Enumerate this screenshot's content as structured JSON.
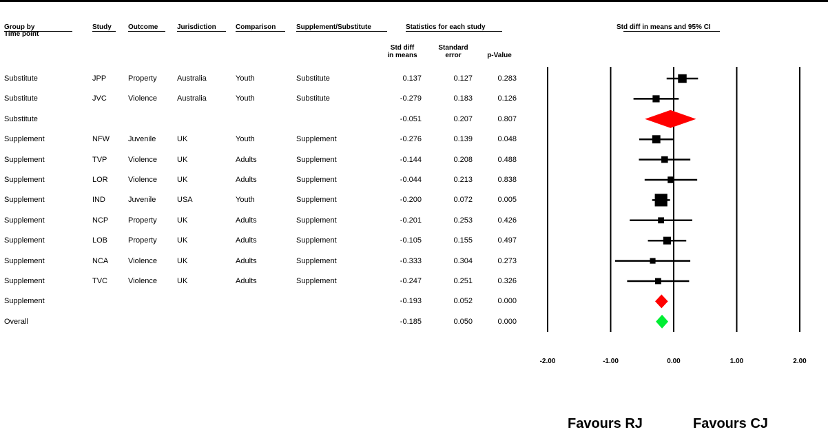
{
  "columns": {
    "group": "Group by",
    "group_sub": "Time point",
    "study": "Study",
    "outcome": "Outcome",
    "jurisdiction": "Jurisdiction",
    "comparison": "Comparison",
    "supplement": "Supplement/Substitute",
    "stats_title": "Statistics for each study",
    "std_diff": "Std diff",
    "std_diff_2": "in means",
    "std_err": "Standard",
    "std_err_2": "error",
    "p_value": "p-Value",
    "plot_title": "Std diff in means and 95% CI"
  },
  "rows": [
    {
      "group": "Substitute",
      "study": "JPP",
      "outcome": "Property",
      "jurisdiction": "Australia",
      "comparison": "Youth",
      "supplement": "Substitute",
      "std_diff": "0.137",
      "se": "0.127",
      "p": "0.283"
    },
    {
      "group": "Substitute",
      "study": "JVC",
      "outcome": "Violence",
      "jurisdiction": "Australia",
      "comparison": "Youth",
      "supplement": "Substitute",
      "std_diff": "-0.279",
      "se": "0.183",
      "p": "0.126"
    },
    {
      "group": "Substitute",
      "study": "",
      "outcome": "",
      "jurisdiction": "",
      "comparison": "",
      "supplement": "",
      "std_diff": "-0.051",
      "se": "0.207",
      "p": "0.807"
    },
    {
      "group": "Supplement",
      "study": "NFW",
      "outcome": "Juvenile",
      "jurisdiction": "UK",
      "comparison": "Youth",
      "supplement": "Supplement",
      "std_diff": "-0.276",
      "se": "0.139",
      "p": "0.048"
    },
    {
      "group": "Supplement",
      "study": "TVP",
      "outcome": "Violence",
      "jurisdiction": "UK",
      "comparison": "Adults",
      "supplement": "Supplement",
      "std_diff": "-0.144",
      "se": "0.208",
      "p": "0.488"
    },
    {
      "group": "Supplement",
      "study": "LOR",
      "outcome": "Violence",
      "jurisdiction": "UK",
      "comparison": "Adults",
      "supplement": "Supplement",
      "std_diff": "-0.044",
      "se": "0.213",
      "p": "0.838"
    },
    {
      "group": "Supplement",
      "study": "IND",
      "outcome": "Juvenile",
      "jurisdiction": "USA",
      "comparison": "Youth",
      "supplement": "Supplement",
      "std_diff": "-0.200",
      "se": "0.072",
      "p": "0.005"
    },
    {
      "group": "Supplement",
      "study": "NCP",
      "outcome": "Property",
      "jurisdiction": "UK",
      "comparison": "Adults",
      "supplement": "Supplement",
      "std_diff": "-0.201",
      "se": "0.253",
      "p": "0.426"
    },
    {
      "group": "Supplement",
      "study": "LOB",
      "outcome": "Property",
      "jurisdiction": "UK",
      "comparison": "Adults",
      "supplement": "Supplement",
      "std_diff": "-0.105",
      "se": "0.155",
      "p": "0.497"
    },
    {
      "group": "Supplement",
      "study": "NCA",
      "outcome": "Violence",
      "jurisdiction": "UK",
      "comparison": "Adults",
      "supplement": "Supplement",
      "std_diff": "-0.333",
      "se": "0.304",
      "p": "0.273"
    },
    {
      "group": "Supplement",
      "study": "TVC",
      "outcome": "Violence",
      "jurisdiction": "UK",
      "comparison": "Adults",
      "supplement": "Supplement",
      "std_diff": "-0.247",
      "se": "0.251",
      "p": "0.326"
    },
    {
      "group": "Supplement",
      "study": "",
      "outcome": "",
      "jurisdiction": "",
      "comparison": "",
      "supplement": "",
      "std_diff": "-0.193",
      "se": "0.052",
      "p": "0.000"
    },
    {
      "group": "Overall",
      "study": "",
      "outcome": "",
      "jurisdiction": "",
      "comparison": "",
      "supplement": "",
      "std_diff": "-0.185",
      "se": "0.050",
      "p": "0.000"
    }
  ],
  "favours_left": "Favours RJ",
  "favours_right": "Favours CJ",
  "colors": {
    "subgroup": "#ff0000",
    "overall": "#00ee33",
    "study": "#000000"
  },
  "chart_data": {
    "type": "forest",
    "title": "Std diff in means and 95% CI",
    "xlim": [
      -2,
      2
    ],
    "ticks": [
      -2,
      -1,
      0,
      1,
      2
    ],
    "tick_labels": [
      "-2.00",
      "-1.00",
      "0.00",
      "1.00",
      "2.00"
    ],
    "grid": "vertical lines at each tick",
    "points": [
      {
        "label": "JPP",
        "kind": "study",
        "estimate": 0.137,
        "ci_low": -0.112,
        "ci_high": 0.386
      },
      {
        "label": "JVC",
        "kind": "study",
        "estimate": -0.279,
        "ci_low": -0.638,
        "ci_high": 0.08
      },
      {
        "label": "Substitute",
        "kind": "subgroup",
        "estimate": -0.051,
        "ci_low": -0.457,
        "ci_high": 0.355
      },
      {
        "label": "NFW",
        "kind": "study",
        "estimate": -0.276,
        "ci_low": -0.548,
        "ci_high": -0.004
      },
      {
        "label": "TVP",
        "kind": "study",
        "estimate": -0.144,
        "ci_low": -0.552,
        "ci_high": 0.264
      },
      {
        "label": "LOR",
        "kind": "study",
        "estimate": -0.044,
        "ci_low": -0.461,
        "ci_high": 0.373
      },
      {
        "label": "IND",
        "kind": "study",
        "estimate": -0.2,
        "ci_low": -0.341,
        "ci_high": -0.059
      },
      {
        "label": "NCP",
        "kind": "study",
        "estimate": -0.201,
        "ci_low": -0.697,
        "ci_high": 0.295
      },
      {
        "label": "LOB",
        "kind": "study",
        "estimate": -0.105,
        "ci_low": -0.409,
        "ci_high": 0.199
      },
      {
        "label": "NCA",
        "kind": "study",
        "estimate": -0.333,
        "ci_low": -0.929,
        "ci_high": 0.263
      },
      {
        "label": "TVC",
        "kind": "study",
        "estimate": -0.247,
        "ci_low": -0.739,
        "ci_high": 0.245
      },
      {
        "label": "Supplement",
        "kind": "subgroup",
        "estimate": -0.193,
        "ci_low": -0.295,
        "ci_high": -0.091
      },
      {
        "label": "Overall",
        "kind": "overall",
        "estimate": -0.185,
        "ci_low": -0.283,
        "ci_high": -0.087
      }
    ]
  }
}
